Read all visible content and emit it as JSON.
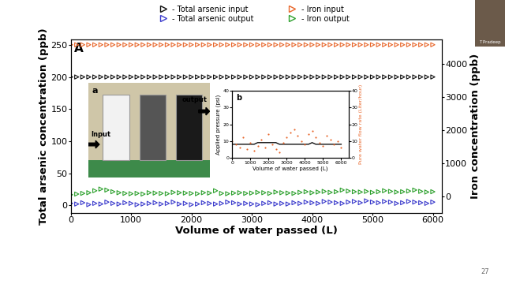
{
  "chart_data": [
    {
      "type": "scatter",
      "panel_label": "A",
      "x_label": "Volume of water passed (L)",
      "y_label": "Total arsenic concentration (ppb)",
      "y2_label": "Iron concentration (ppb)",
      "xlim": [
        0,
        6150
      ],
      "xticks": [
        0,
        1000,
        2000,
        3000,
        4000,
        5000,
        6000
      ],
      "ylim": [
        -12,
        258
      ],
      "yticks": [
        0,
        50,
        100,
        150,
        200,
        250
      ],
      "y2lim": [
        -490,
        4720
      ],
      "y2ticks": [
        0,
        1000,
        2000,
        3000,
        4000
      ],
      "legend": "upper center",
      "x": [
        0,
        100,
        200,
        300,
        400,
        500,
        600,
        700,
        800,
        900,
        1000,
        1100,
        1200,
        1300,
        1400,
        1500,
        1600,
        1700,
        1800,
        1900,
        2000,
        2100,
        2200,
        2300,
        2400,
        2500,
        2600,
        2700,
        2800,
        2900,
        3000,
        3100,
        3200,
        3300,
        3400,
        3500,
        3600,
        3700,
        3800,
        3900,
        4000,
        4100,
        4200,
        4300,
        4400,
        4500,
        4600,
        4700,
        4800,
        4900,
        5000,
        5100,
        5200,
        5300,
        5400,
        5500,
        5600,
        5700,
        5800,
        5900,
        6000
      ],
      "series": [
        {
          "name": "- Total arsenic input",
          "color": "#111111",
          "marker": "triangle_right",
          "values": [
            200,
            200,
            200,
            200,
            200,
            200,
            200,
            200,
            200,
            200,
            200,
            200,
            200,
            200,
            200,
            200,
            200,
            200,
            200,
            200,
            200,
            200,
            200,
            200,
            200,
            200,
            200,
            200,
            200,
            200,
            200,
            200,
            200,
            200,
            200,
            200,
            200,
            200,
            200,
            200,
            200,
            200,
            200,
            200,
            200,
            200,
            200,
            200,
            200,
            200,
            200,
            200,
            200,
            200,
            200,
            200,
            200,
            200,
            200,
            200,
            200
          ]
        },
        {
          "name": "- Total arsenic output",
          "color": "#3a3acc",
          "marker": "triangle_right",
          "values": [
            3,
            2,
            4,
            1,
            3,
            2,
            5,
            3,
            2,
            4,
            3,
            1,
            2,
            3,
            4,
            2,
            3,
            5,
            2,
            3,
            1,
            2,
            4,
            3,
            2,
            3,
            5,
            4,
            2,
            3,
            2,
            1,
            3,
            4,
            2,
            3,
            2,
            4,
            3,
            5,
            4,
            3,
            6,
            5,
            4,
            3,
            5,
            6,
            4,
            7,
            5,
            4,
            6,
            5,
            3,
            4,
            6,
            5,
            4,
            3,
            5
          ]
        },
        {
          "name": "- Iron input",
          "color": "#e8662a",
          "marker": "triangle_right",
          "axis": "y2",
          "values": [
            4570,
            4570,
            4570,
            4570,
            4570,
            4570,
            4570,
            4570,
            4570,
            4570,
            4570,
            4570,
            4570,
            4570,
            4570,
            4570,
            4570,
            4570,
            4570,
            4570,
            4570,
            4570,
            4570,
            4570,
            4570,
            4570,
            4570,
            4570,
            4570,
            4570,
            4570,
            4570,
            4570,
            4570,
            4570,
            4570,
            4570,
            4570,
            4570,
            4570,
            4570,
            4570,
            4570,
            4570,
            4570,
            4570,
            4570,
            4570,
            4570,
            4570,
            4570,
            4570,
            4570,
            4570,
            4570,
            4570,
            4570,
            4570,
            4570,
            4570,
            4570
          ]
        },
        {
          "name": "- Iron output",
          "color": "#2ca02c",
          "marker": "triangle_right",
          "axis": "y2",
          "values": [
            60,
            80,
            100,
            120,
            180,
            230,
            200,
            150,
            120,
            100,
            90,
            100,
            80,
            120,
            110,
            100,
            90,
            130,
            120,
            110,
            100,
            90,
            120,
            110,
            180,
            100,
            90,
            110,
            120,
            100,
            110,
            130,
            120,
            100,
            140,
            120,
            110,
            100,
            130,
            150,
            120,
            140,
            160,
            130,
            150,
            200,
            170,
            150,
            140,
            160,
            130,
            150,
            180,
            160,
            140,
            150,
            170,
            200,
            160,
            140,
            150
          ]
        }
      ]
    },
    {
      "type": "line",
      "panel_label": "b",
      "x_label": "Volume of water passed (L)",
      "y_label": "Applied pressure (psi)",
      "y2_label": "Pure water flow rate (Liter/hour)",
      "xlim": [
        0,
        6400
      ],
      "xticks": [
        0,
        1000,
        2000,
        3000,
        4000,
        5000,
        6000
      ],
      "ylim": [
        0,
        40
      ],
      "yticks": [
        0,
        10,
        20,
        30,
        40
      ],
      "y2lim": [
        0,
        40
      ],
      "y2ticks": [
        0,
        10,
        20,
        30,
        40
      ],
      "x": [
        0,
        200,
        400,
        600,
        800,
        1000,
        1200,
        1400,
        1600,
        1800,
        2000,
        2200,
        2400,
        2600,
        2800,
        3000,
        3200,
        3400,
        3600,
        3800,
        4000,
        4200,
        4400,
        4600,
        4800,
        5000,
        5200,
        5400,
        5600,
        5800,
        6000
      ],
      "series": [
        {
          "name": "Applied pressure",
          "type": "line",
          "color": "#111111",
          "line_style": "solid",
          "values": [
            8,
            8,
            8,
            8,
            8,
            8,
            8,
            9,
            9,
            9,
            9,
            9,
            9,
            8,
            8,
            8,
            8,
            8,
            8,
            8,
            8,
            8,
            9,
            8,
            8,
            8,
            8,
            8,
            8,
            8,
            8
          ]
        },
        {
          "name": "Pure water flow rate",
          "type": "scatter",
          "color": "#e8662a",
          "marker": "circle",
          "axis": "y2",
          "values": [
            10,
            8,
            6,
            12,
            5,
            9,
            4,
            7,
            11,
            6,
            14,
            8,
            5,
            3,
            9,
            12,
            15,
            17,
            13,
            10,
            8,
            14,
            16,
            12,
            9,
            7,
            13,
            11,
            8,
            10,
            6
          ]
        }
      ]
    }
  ],
  "photo": {
    "label": "a",
    "input_label": "Input",
    "output_label": "output"
  },
  "speaker": "T Pradeep",
  "page": "27"
}
